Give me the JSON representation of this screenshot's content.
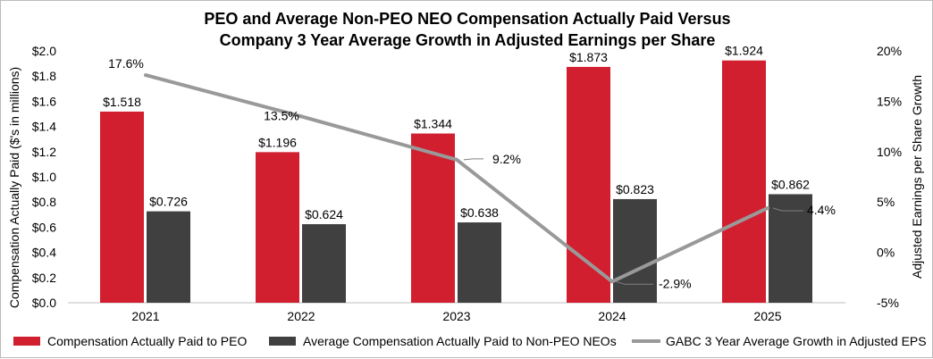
{
  "chart_data": {
    "type": "bar",
    "title_lines": [
      "PEO and Average Non-PEO NEO Compensation Actually Paid Versus",
      "Company 3 Year Average Growth in Adjusted Earnings per Share"
    ],
    "categories": [
      "2021",
      "2022",
      "2023",
      "2024",
      "2025"
    ],
    "ylabel": "Compensation Actually Paid ($'s in millions)",
    "y2label": "Adjusted Earnings per Share Growth",
    "ylim": [
      0,
      2.0
    ],
    "y_ticks": [
      "$0.0",
      "$0.2",
      "$0.4",
      "$0.6",
      "$0.8",
      "$1.0",
      "$1.2",
      "$1.4",
      "$1.6",
      "$1.8",
      "$2.0"
    ],
    "y2lim": [
      -5,
      20
    ],
    "y2_ticks": [
      "-5%",
      "0%",
      "5%",
      "10%",
      "15%",
      "20%"
    ],
    "series": [
      {
        "name": "Compensation Actually Paid to PEO",
        "type": "bar",
        "axis": "left",
        "color": "#d11f2f",
        "values": [
          1.518,
          1.196,
          1.344,
          1.873,
          1.924
        ],
        "labels": [
          "$1.518",
          "$1.196",
          "$1.344",
          "$1.873",
          "$1.924"
        ]
      },
      {
        "name": "Average Compensation Actually Paid to Non-PEO NEOs",
        "type": "bar",
        "axis": "left",
        "color": "#404040",
        "values": [
          0.726,
          0.624,
          0.638,
          0.823,
          0.862
        ],
        "labels": [
          "$0.726",
          "$0.624",
          "$0.638",
          "$0.823",
          "$0.862"
        ]
      },
      {
        "name": "GABC 3 Year Average Growth in Adjusted EPS",
        "type": "line",
        "axis": "right",
        "color": "#999999",
        "values": [
          17.6,
          13.5,
          9.2,
          -2.9,
          4.4
        ],
        "labels": [
          "17.6%",
          "13.5%",
          "9.2%",
          "-2.9%",
          "4.4%"
        ]
      }
    ],
    "legend_position": "bottom",
    "grid": false
  }
}
